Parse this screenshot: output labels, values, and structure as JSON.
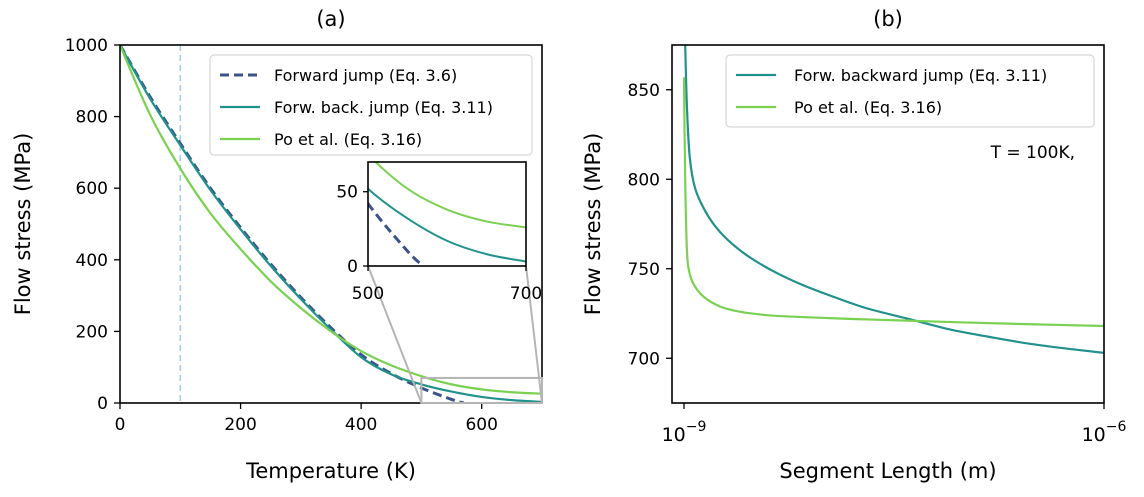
{
  "chart_data": [
    {
      "type": "line",
      "title": "(a)",
      "xlabel": "Temperature (K)",
      "ylabel": "Flow stress (MPa)",
      "xlim": [
        0,
        700
      ],
      "ylim": [
        0,
        1000
      ],
      "xticks": [
        0,
        200,
        400,
        600
      ],
      "yticks": [
        0,
        200,
        400,
        600,
        800,
        1000
      ],
      "vline": {
        "x": 100,
        "color": "#a6cbe8",
        "style": "dashed"
      },
      "legend_position": "upper-right",
      "series": [
        {
          "name": "Forward jump (Eq. 3.6)",
          "color": "#3b528b",
          "style": "dashed",
          "x": [
            0,
            50,
            100,
            150,
            200,
            250,
            300,
            350,
            400,
            450,
            500,
            550,
            570
          ],
          "y": [
            1000,
            855,
            725,
            600,
            490,
            388,
            295,
            210,
            135,
            82,
            42,
            10,
            0
          ]
        },
        {
          "name": "Forw. back. jump (Eq. 3.11)",
          "color": "#21918c",
          "style": "solid",
          "x": [
            0,
            50,
            100,
            150,
            200,
            250,
            300,
            350,
            400,
            450,
            500,
            550,
            600,
            650,
            700
          ],
          "y": [
            1000,
            850,
            720,
            595,
            485,
            383,
            290,
            205,
            128,
            80,
            52,
            32,
            17,
            8,
            3
          ]
        },
        {
          "name": "Po et al. (Eq. 3.16)",
          "color": "#7ad151",
          "style": "solid",
          "x": [
            0,
            50,
            100,
            150,
            200,
            250,
            300,
            350,
            400,
            450,
            500,
            550,
            600,
            650,
            700
          ],
          "y": [
            1000,
            805,
            655,
            530,
            430,
            340,
            265,
            200,
            145,
            105,
            75,
            52,
            38,
            30,
            26
          ]
        }
      ],
      "inset": {
        "xlim": [
          500,
          700
        ],
        "ylim": [
          0,
          70
        ],
        "xticks": [
          500,
          700
        ],
        "yticks": [
          0,
          50
        ]
      }
    },
    {
      "type": "line",
      "title": "(b)",
      "xlabel": "Segment Length (m)",
      "ylabel": "Flow stress (MPa)",
      "xscale": "log",
      "xlim": [
        1e-09,
        1e-06
      ],
      "ylim": [
        675,
        875
      ],
      "xticks": [
        {
          "base": "10",
          "exp": "−9"
        },
        {
          "base": "10",
          "exp": "−6"
        }
      ],
      "yticks": [
        700,
        750,
        800,
        850
      ],
      "legend_position": "upper-right",
      "annotation": "T = 100K,",
      "series": [
        {
          "name": "Forw. backward jump (Eq. 3.11)",
          "color": "#21918c",
          "style": "solid",
          "x": [
            1.02e-09,
            1.05e-09,
            1.1e-09,
            1.2e-09,
            1.4e-09,
            1.7e-09,
            2.2e-09,
            3e-09,
            4.5e-09,
            7e-09,
            1.2e-08,
            2e-08,
            4e-08,
            8e-08,
            1.5e-07,
            3e-07,
            6e-07,
            1e-06
          ],
          "y": [
            875,
            840,
            812,
            795,
            783,
            773,
            764,
            756,
            748,
            741,
            734,
            728,
            722,
            716,
            712,
            708,
            705,
            703
          ]
        },
        {
          "name": "Po et al. (Eq. 3.16)",
          "color": "#7ad151",
          "style": "solid",
          "x": [
            1e-09,
            1.02e-09,
            1.05e-09,
            1.1e-09,
            1.2e-09,
            1.4e-09,
            1.8e-09,
            2.5e-09,
            4e-09,
            7e-09,
            1.5e-08,
            4e-08,
            1e-07,
            3e-07,
            1e-06
          ],
          "y": [
            857,
            800,
            760,
            747,
            740,
            734,
            729,
            726,
            724,
            723,
            722,
            721,
            720,
            719,
            718
          ]
        }
      ]
    }
  ]
}
